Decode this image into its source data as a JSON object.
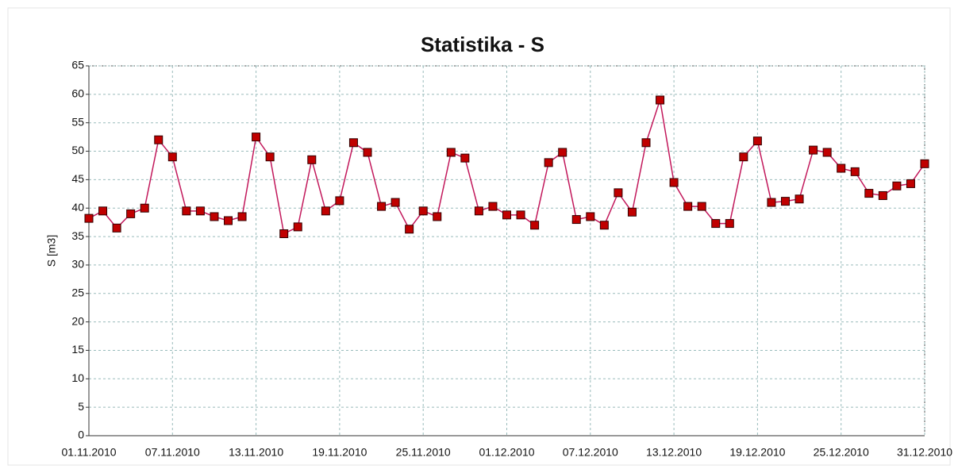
{
  "chart_data": {
    "type": "line",
    "title": "Statistika - S",
    "y_label": "S [m3]",
    "categories": [
      "01.11.2010",
      null,
      null,
      null,
      null,
      null,
      "07.11.2010",
      null,
      null,
      null,
      null,
      null,
      "13.11.2010",
      null,
      null,
      null,
      null,
      null,
      "19.11.2010",
      null,
      null,
      null,
      null,
      null,
      "25.11.2010",
      null,
      null,
      null,
      null,
      null,
      "01.12.2010",
      null,
      null,
      null,
      null,
      null,
      "07.12.2010",
      null,
      null,
      null,
      null,
      null,
      "13.12.2010",
      null,
      null,
      null,
      null,
      null,
      "19.12.2010",
      null,
      null,
      null,
      null,
      null,
      "25.12.2010",
      null,
      null,
      null,
      null,
      null,
      "31.12.2010"
    ],
    "series": [
      {
        "name": "S",
        "color": "#c00000",
        "line_color": "#c2185b",
        "values": [
          38.2,
          39.5,
          36.5,
          39,
          40,
          52,
          49,
          39.5,
          39.5,
          38.5,
          37.8,
          38.5,
          52.5,
          49,
          35.5,
          36.7,
          48.5,
          39.5,
          41.3,
          51.5,
          49.8,
          40.3,
          41,
          36.3,
          39.5,
          38.5,
          49.8,
          48.8,
          39.5,
          40.3,
          38.8,
          38.8,
          37,
          48,
          49.8,
          38,
          38.5,
          37,
          42.7,
          39.3,
          51.5,
          59,
          44.5,
          40.3,
          40.3,
          37.3,
          37.3,
          49,
          51.8,
          41,
          41.2,
          41.6,
          50.2,
          49.8,
          47,
          46.4,
          42.6,
          42.2,
          43.9,
          44.3,
          47.8
        ]
      }
    ],
    "ylim": [
      0,
      65
    ],
    "yticks": [
      0,
      5,
      10,
      15,
      20,
      25,
      30,
      35,
      40,
      45,
      50,
      55,
      60,
      65
    ],
    "grid": true
  }
}
